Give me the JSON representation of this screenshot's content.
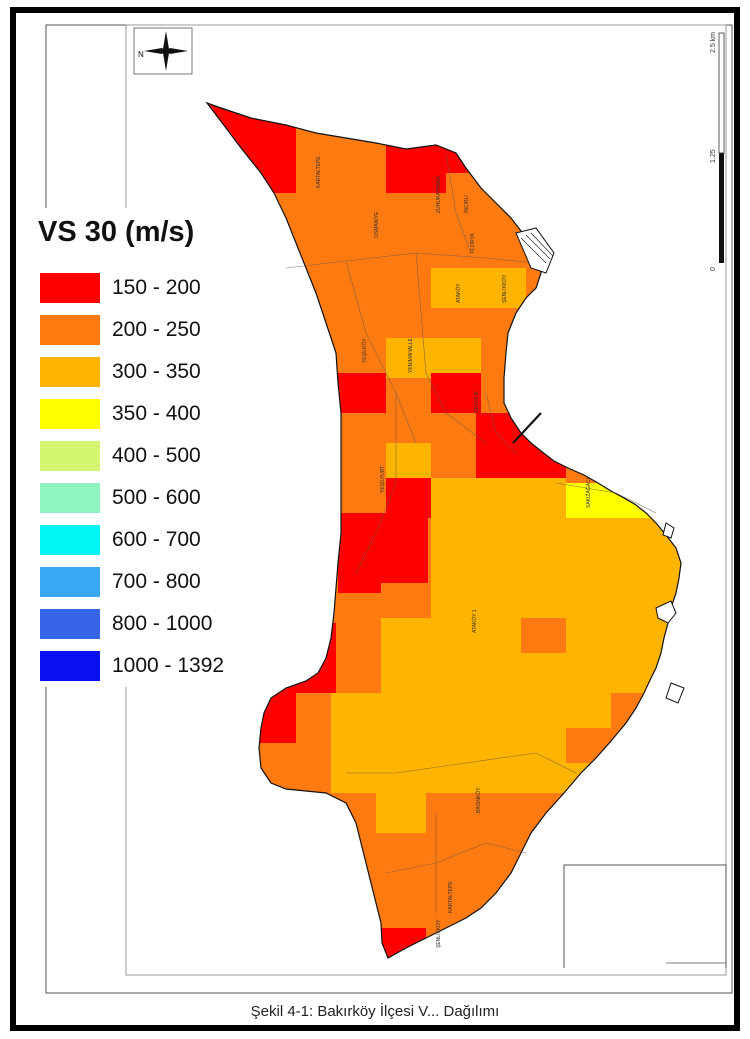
{
  "legend": {
    "title": "VS 30 (m/s)",
    "classes": [
      {
        "label": "150 - 200",
        "color": "#ff0000"
      },
      {
        "label": "200 - 250",
        "color": "#ff7a10"
      },
      {
        "label": "300 - 350",
        "color": "#ffb400"
      },
      {
        "label": "350 - 400",
        "color": "#ffff00"
      },
      {
        "label": "400 - 500",
        "color": "#d3f56f"
      },
      {
        "label": "500 - 600",
        "color": "#8ff5c0"
      },
      {
        "label": "600 - 700",
        "color": "#00f5f5"
      },
      {
        "label": "700 - 800",
        "color": "#3aa7f2"
      },
      {
        "label": "800 - 1000",
        "color": "#3665e8"
      },
      {
        "label": "1000 - 1392",
        "color": "#0a10f0"
      }
    ]
  },
  "caption": "Şekil 4-1: Bakırköy İlçesi V... Dağılımı",
  "scale_bar": {
    "labels": [
      "0",
      "1.25",
      "2.5 km"
    ]
  },
  "icons": {
    "north_arrow": "north-arrow-icon"
  }
}
